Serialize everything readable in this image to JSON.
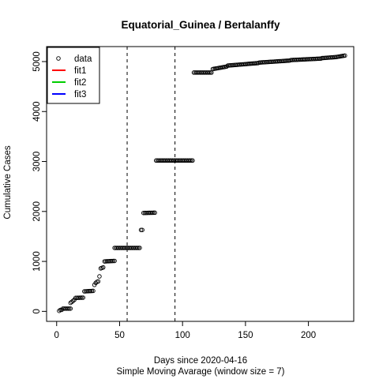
{
  "chart_data": {
    "type": "scatter",
    "title": "Equatorial_Guinea / Bertalanffy",
    "xlabel": "Days since 2020-04-16",
    "subtitle": "Simple Moving Avarage (window size = 7)",
    "ylabel": "Cumulative Cases",
    "xlim": [
      -8,
      236
    ],
    "ylim": [
      -200,
      5300
    ],
    "xticks": [
      0,
      50,
      100,
      150,
      200
    ],
    "yticks": [
      0,
      1000,
      2000,
      3000,
      4000,
      5000
    ],
    "vlines": [
      56,
      94
    ],
    "legend": {
      "position": "top-left",
      "entries": [
        {
          "label": "data",
          "kind": "point",
          "color": "#000000"
        },
        {
          "label": "fit1",
          "kind": "line",
          "color": "#ff0000"
        },
        {
          "label": "fit2",
          "kind": "line",
          "color": "#00cd00"
        },
        {
          "label": "fit3",
          "kind": "line",
          "color": "#0000ff"
        }
      ]
    },
    "segments": [
      {
        "x0": 2,
        "x1": 2,
        "y0": 10,
        "y1": 10
      },
      {
        "x0": 3,
        "x1": 4,
        "y0": 30,
        "y1": 30
      },
      {
        "x0": 5,
        "x1": 11,
        "y0": 55,
        "y1": 55
      },
      {
        "x0": 11,
        "x1": 14,
        "y0": 170,
        "y1": 230
      },
      {
        "x0": 15,
        "x1": 21,
        "y0": 270,
        "y1": 275
      },
      {
        "x0": 22,
        "x1": 29,
        "y0": 400,
        "y1": 410
      },
      {
        "x0": 30,
        "x1": 31,
        "y0": 530,
        "y1": 570
      },
      {
        "x0": 32,
        "x1": 33,
        "y0": 590,
        "y1": 600
      },
      {
        "x0": 34,
        "x1": 34,
        "y0": 700,
        "y1": 700
      },
      {
        "x0": 35,
        "x1": 37,
        "y0": 860,
        "y1": 880
      },
      {
        "x0": 38,
        "x1": 46,
        "y0": 1000,
        "y1": 1010
      },
      {
        "x0": 46,
        "x1": 66,
        "y0": 1270,
        "y1": 1270
      },
      {
        "x0": 67,
        "x1": 68,
        "y0": 1630,
        "y1": 1630
      },
      {
        "x0": 69,
        "x1": 78,
        "y0": 1970,
        "y1": 1975
      },
      {
        "x0": 79,
        "x1": 108,
        "y0": 3020,
        "y1": 3020
      },
      {
        "x0": 109,
        "x1": 123,
        "y0": 4780,
        "y1": 4780
      },
      {
        "x0": 124,
        "x1": 135,
        "y0": 4850,
        "y1": 4900
      },
      {
        "x0": 136,
        "x1": 160,
        "y0": 4920,
        "y1": 4970
      },
      {
        "x0": 161,
        "x1": 185,
        "y0": 4980,
        "y1": 5020
      },
      {
        "x0": 186,
        "x1": 210,
        "y0": 5030,
        "y1": 5060
      },
      {
        "x0": 211,
        "x1": 222,
        "y0": 5070,
        "y1": 5090
      },
      {
        "x0": 223,
        "x1": 229,
        "y0": 5095,
        "y1": 5120
      }
    ]
  }
}
